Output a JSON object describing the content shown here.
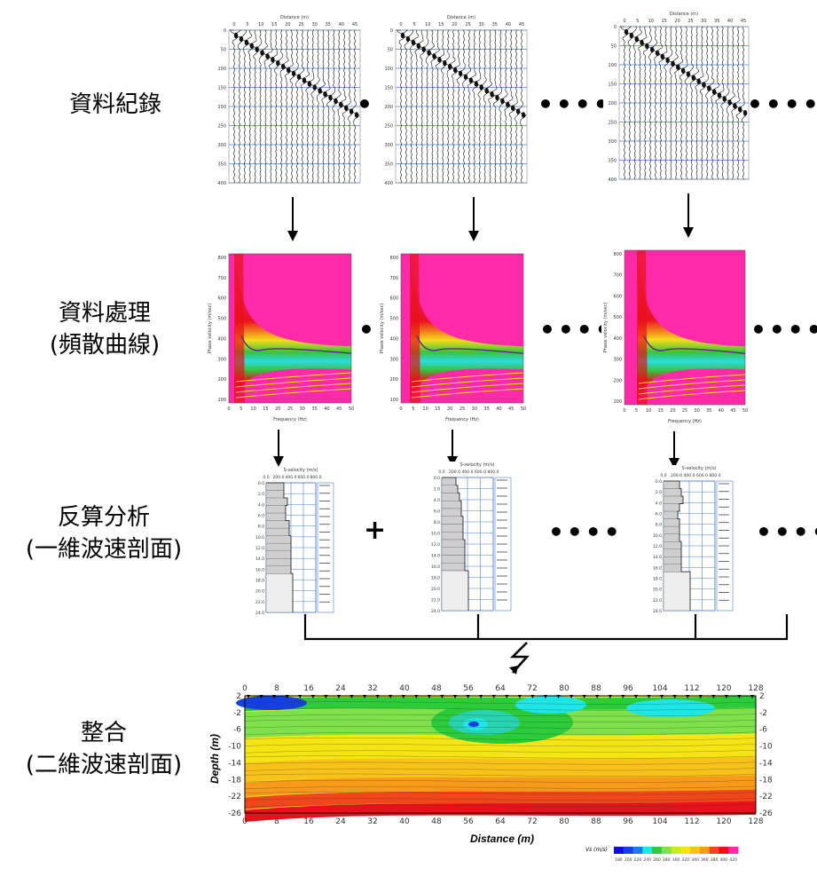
{
  "rows": [
    {
      "lines": [
        "資料紀錄"
      ]
    },
    {
      "lines": [
        "資料處理",
        "(頻散曲線)"
      ]
    },
    {
      "lines": [
        "反算分析",
        "(一維波速剖面)"
      ]
    },
    {
      "lines": [
        "整合",
        "(二維波速剖面)"
      ]
    }
  ],
  "separators": {
    "dot": "•",
    "dots": "••••",
    "plus": "+"
  },
  "seismograms": {
    "title": "Distance (m)",
    "x_ticks": [
      "0",
      "5",
      "10",
      "15",
      "20",
      "25",
      "30",
      "35",
      "40",
      "45"
    ],
    "y_ticks": [
      "0",
      "50",
      "100",
      "150",
      "200",
      "250",
      "300",
      "350",
      "400"
    ]
  },
  "dispersion": {
    "y_title": "Phase velocity (m/sec)",
    "x_title": "Frequency (Hz)",
    "y_ticks": [
      "800",
      "700",
      "600",
      "500",
      "400",
      "300",
      "200",
      "100"
    ],
    "x_ticks": [
      "0",
      "5",
      "10",
      "15",
      "20",
      "25",
      "30",
      "35",
      "40",
      "45",
      "50"
    ]
  },
  "profiles": {
    "title": "S-velocity (m/s)",
    "x_ticks": [
      "0.0",
      "200.0",
      "400.0",
      "600.0",
      "800.0"
    ],
    "depth_ticks": [
      "0.0",
      "2.0",
      "4.0",
      "6.0",
      "8.0",
      "10.0",
      "12.0",
      "14.0",
      "16.0",
      "18.0",
      "20.0",
      "22.0",
      "24.0"
    ]
  },
  "section": {
    "x_ticks": [
      "0",
      "8",
      "16",
      "24",
      "32",
      "40",
      "48",
      "56",
      "64",
      "72",
      "80",
      "88",
      "96",
      "104",
      "112",
      "120",
      "128"
    ],
    "y_ticks": [
      "2",
      "-2",
      "-6",
      "-10",
      "-14",
      "-18",
      "-22",
      "-26"
    ],
    "xlabel": "Distance (m)",
    "ylabel": "Depth (m)",
    "colorbar_label": "Vs (m/s)",
    "colorbar_ticks": [
      "180",
      "200",
      "220",
      "240",
      "260",
      "280",
      "300",
      "320",
      "340",
      "360",
      "380",
      "400",
      "420"
    ]
  },
  "colors": {
    "grid_blue": "#4f7fd6",
    "magenta": "#ff2aa8",
    "red": "#e8101a",
    "yellow": "#f5e514",
    "green": "#2ccb3a",
    "cyan": "#1fe6e6",
    "blue": "#1540e0"
  }
}
